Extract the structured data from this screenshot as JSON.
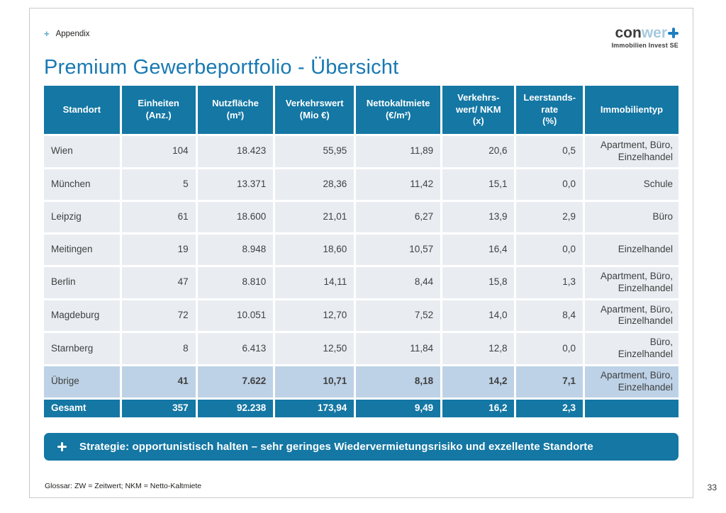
{
  "breadcrumb": {
    "plus": "+",
    "label": "Appendix"
  },
  "logo": {
    "text_dark": "con",
    "text_light": "wer",
    "subtitle": "Immobilien Invest SE"
  },
  "title": "Premium Gewerbeportfolio - Übersicht",
  "table": {
    "columns": [
      "Standort",
      "Einheiten\n(Anz.)",
      "Nutzfläche\n(m²)",
      "Verkehrswert\n(Mio €)",
      "Nettokaltmiete\n(€/m²)",
      "Verkehrs-\nwert/ NKM\n(x)",
      "Leerstands-\nrate\n(%)",
      "Immobilientyp"
    ],
    "rows": [
      {
        "style": "",
        "cells": [
          "Wien",
          "104",
          "18.423",
          "55,95",
          "11,89",
          "20,6",
          "0,5",
          "Apartment, Büro,\nEinzelhandel"
        ]
      },
      {
        "style": "",
        "cells": [
          "München",
          "5",
          "13.371",
          "28,36",
          "11,42",
          "15,1",
          "0,0",
          "Schule"
        ]
      },
      {
        "style": "",
        "cells": [
          "Leipzig",
          "61",
          "18.600",
          "21,01",
          "6,27",
          "13,9",
          "2,9",
          "Büro"
        ]
      },
      {
        "style": "",
        "cells": [
          "Meitingen",
          "19",
          "8.948",
          "18,60",
          "10,57",
          "16,4",
          "0,0",
          "Einzelhandel"
        ]
      },
      {
        "style": "",
        "cells": [
          "Berlin",
          "47",
          "8.810",
          "14,11",
          "8,44",
          "15,8",
          "1,3",
          "Apartment, Büro,\nEinzelhandel"
        ]
      },
      {
        "style": "",
        "cells": [
          "Magdeburg",
          "72",
          "10.051",
          "12,70",
          "7,52",
          "14,0",
          "8,4",
          "Apartment, Büro,\nEinzelhandel"
        ]
      },
      {
        "style": "",
        "cells": [
          "Starnberg",
          "8",
          "6.413",
          "12,50",
          "11,84",
          "12,8",
          "0,0",
          "Büro,\nEinzelhandel"
        ]
      },
      {
        "style": "highlight",
        "cells": [
          "Übrige",
          "41",
          "7.622",
          "10,71",
          "8,18",
          "14,2",
          "7,1",
          "Apartment, Büro,\nEinzelhandel"
        ]
      },
      {
        "style": "total",
        "cells": [
          "Gesamt",
          "357",
          "92.238",
          "173,94",
          "9,49",
          "16,2",
          "2,3",
          ""
        ]
      }
    ]
  },
  "banner": {
    "text": "Strategie: opportunistisch halten – sehr geringes Wiedervermietungsrisiko und exzellente Standorte"
  },
  "footer": "Glossar: ZW = Zeitwert; NKM = Netto-Kaltmiete",
  "page_number": "33",
  "colors": {
    "primary_blue": "#1477a4",
    "title_blue": "#1879b2",
    "highlight_row": "#bdd2e6",
    "row_bg": "#e9edf2",
    "logo_blue": "#1f7ec1",
    "logo_light_blue": "#a5c9de",
    "logo_dark": "#3c3c3b",
    "breadcrumb_plus": "#5aa8c7"
  }
}
